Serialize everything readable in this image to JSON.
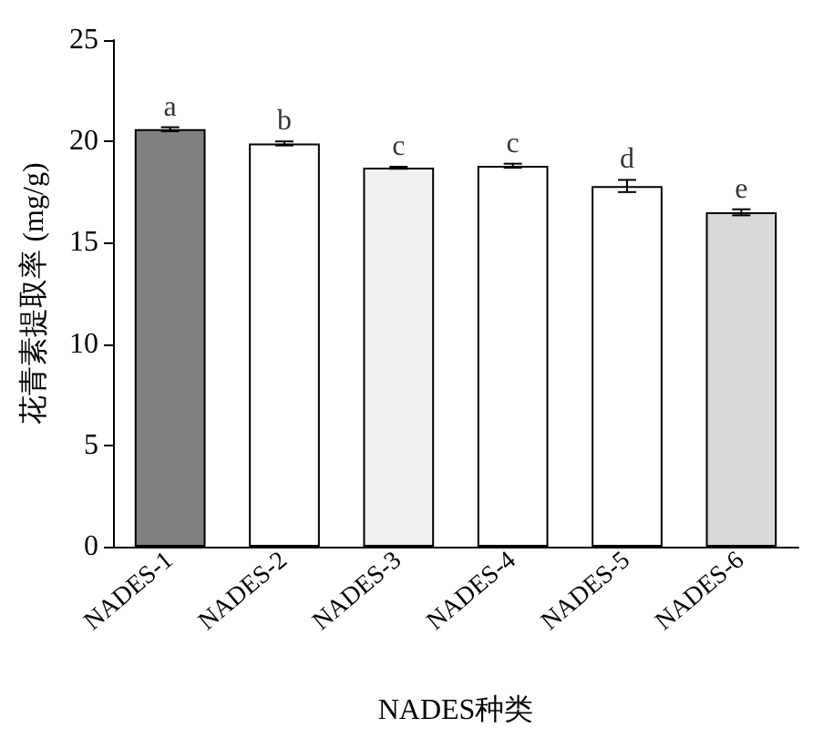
{
  "chart_data": {
    "type": "bar",
    "xlabel": "NADES种类",
    "ylabel": "花青素提取率 (mg/g)",
    "categories": [
      "NADES-1",
      "NADES-2",
      "NADES-3",
      "NADES-4",
      "NADES-5",
      "NADES-6"
    ],
    "values": [
      20.6,
      19.9,
      18.7,
      18.8,
      17.8,
      16.5
    ],
    "errors": [
      0.1,
      0.1,
      0.05,
      0.1,
      0.3,
      0.15
    ],
    "colors": [
      "#808080",
      "#ffffff",
      "#f0f0f0",
      "#ffffff",
      "#ffffff",
      "#d9d9d9"
    ],
    "ylim": [
      0,
      25
    ],
    "yticks": [
      0,
      5,
      10,
      15,
      20,
      25
    ],
    "grid": false,
    "annotations": [
      {
        "text": "a",
        "x": "NADES-1",
        "y": 20.7
      },
      {
        "text": "b",
        "x": "NADES-2",
        "y": 20.0
      },
      {
        "text": "c",
        "x": "NADES-3",
        "y": 18.75
      },
      {
        "text": "c",
        "x": "NADES-4",
        "y": 18.9
      },
      {
        "text": "d",
        "x": "NADES-5",
        "y": 18.1
      },
      {
        "text": "e",
        "x": "NADES-6",
        "y": 16.65
      }
    ]
  }
}
